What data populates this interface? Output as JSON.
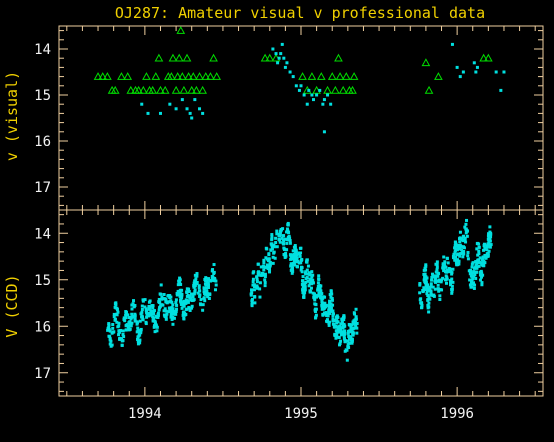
{
  "chart_data": [
    {
      "type": "scatter",
      "title": "OJ287: Amateur visual v professional data",
      "ylabel": "v (visual)",
      "xlim": [
        1993.45,
        1996.55
      ],
      "ylim": [
        17.5,
        13.5
      ],
      "yticks": [
        14,
        15,
        16,
        17
      ],
      "series": [
        {
          "marker": "triangle",
          "color": "#00dd00",
          "points": [
            [
              1993.7,
              14.6
            ],
            [
              1993.73,
              14.6
            ],
            [
              1993.76,
              14.6
            ],
            [
              1993.79,
              14.9
            ],
            [
              1993.81,
              14.9
            ],
            [
              1993.85,
              14.6
            ],
            [
              1993.89,
              14.6
            ],
            [
              1993.91,
              14.9
            ],
            [
              1993.94,
              14.9
            ],
            [
              1993.96,
              14.9
            ],
            [
              1993.99,
              14.9
            ],
            [
              1994.01,
              14.6
            ],
            [
              1994.03,
              14.9
            ],
            [
              1994.05,
              14.9
            ],
            [
              1994.07,
              14.6
            ],
            [
              1994.09,
              14.2
            ],
            [
              1994.1,
              14.9
            ],
            [
              1994.13,
              14.9
            ],
            [
              1994.15,
              14.6
            ],
            [
              1994.17,
              14.6
            ],
            [
              1994.18,
              14.2
            ],
            [
              1994.2,
              14.9
            ],
            [
              1994.21,
              14.6
            ],
            [
              1994.22,
              14.2
            ],
            [
              1994.23,
              13.6
            ],
            [
              1994.24,
              14.6
            ],
            [
              1994.25,
              14.9
            ],
            [
              1994.27,
              14.2
            ],
            [
              1994.28,
              14.6
            ],
            [
              1994.3,
              14.9
            ],
            [
              1994.31,
              14.6
            ],
            [
              1994.33,
              14.9
            ],
            [
              1994.35,
              14.6
            ],
            [
              1994.37,
              14.9
            ],
            [
              1994.39,
              14.6
            ],
            [
              1994.42,
              14.6
            ],
            [
              1994.44,
              14.2
            ],
            [
              1994.46,
              14.6
            ],
            [
              1994.77,
              14.2
            ],
            [
              1994.8,
              14.2
            ],
            [
              1994.84,
              14.2
            ],
            [
              1995.01,
              14.6
            ],
            [
              1995.04,
              14.9
            ],
            [
              1995.07,
              14.6
            ],
            [
              1995.1,
              14.9
            ],
            [
              1995.13,
              14.6
            ],
            [
              1995.17,
              14.9
            ],
            [
              1995.2,
              14.6
            ],
            [
              1995.22,
              14.9
            ],
            [
              1995.24,
              14.2
            ],
            [
              1995.25,
              14.6
            ],
            [
              1995.27,
              14.9
            ],
            [
              1995.29,
              14.6
            ],
            [
              1995.31,
              14.9
            ],
            [
              1995.33,
              14.9
            ],
            [
              1995.34,
              14.6
            ],
            [
              1995.8,
              14.3
            ],
            [
              1995.82,
              14.9
            ],
            [
              1995.88,
              14.6
            ],
            [
              1996.17,
              14.2
            ],
            [
              1996.2,
              14.2
            ]
          ]
        },
        {
          "marker": "square",
          "color": "#00e0e0",
          "points": [
            [
              1993.98,
              15.2
            ],
            [
              1994.02,
              15.4
            ],
            [
              1994.1,
              15.4
            ],
            [
              1994.16,
              15.2
            ],
            [
              1994.2,
              15.3
            ],
            [
              1994.24,
              15.1
            ],
            [
              1994.27,
              15.3
            ],
            [
              1994.29,
              15.4
            ],
            [
              1994.3,
              15.5
            ],
            [
              1994.32,
              15.1
            ],
            [
              1994.35,
              15.3
            ],
            [
              1994.37,
              15.4
            ],
            [
              1994.82,
              14.0
            ],
            [
              1994.84,
              14.1
            ],
            [
              1994.85,
              14.3
            ],
            [
              1994.86,
              14.2
            ],
            [
              1994.87,
              14.1
            ],
            [
              1994.88,
              13.9
            ],
            [
              1994.89,
              14.2
            ],
            [
              1994.9,
              14.4
            ],
            [
              1994.91,
              14.3
            ],
            [
              1994.93,
              14.5
            ],
            [
              1994.95,
              14.6
            ],
            [
              1994.97,
              14.8
            ],
            [
              1994.99,
              14.9
            ],
            [
              1995.0,
              14.8
            ],
            [
              1995.02,
              15.0
            ],
            [
              1995.04,
              15.2
            ],
            [
              1995.05,
              14.9
            ],
            [
              1995.07,
              15.0
            ],
            [
              1995.08,
              15.1
            ],
            [
              1995.1,
              15.0
            ],
            [
              1995.12,
              14.9
            ],
            [
              1995.14,
              15.2
            ],
            [
              1995.15,
              15.1
            ],
            [
              1995.17,
              15.0
            ],
            [
              1995.19,
              15.2
            ],
            [
              1995.15,
              15.8
            ],
            [
              1995.97,
              13.9
            ],
            [
              1996.0,
              14.4
            ],
            [
              1996.02,
              14.6
            ],
            [
              1996.04,
              14.5
            ],
            [
              1996.11,
              14.3
            ],
            [
              1996.12,
              14.5
            ],
            [
              1996.13,
              14.4
            ],
            [
              1996.25,
              14.5
            ],
            [
              1996.28,
              14.9
            ],
            [
              1996.3,
              14.5
            ]
          ]
        }
      ]
    },
    {
      "type": "scatter",
      "ylabel": "V (CCD)",
      "xlim": [
        1993.45,
        1996.55
      ],
      "ylim": [
        17.5,
        13.5
      ],
      "yticks": [
        14,
        15,
        16,
        17
      ],
      "xticks": [
        1994,
        1995,
        1996
      ],
      "series": [
        {
          "marker": "square",
          "color": "#00e0e0",
          "segments": [
            {
              "x": [
                1993.76,
                1994.46
              ],
              "trend": [
                [
                  0,
                  16.1
                ],
                [
                  0.25,
                  15.9
                ],
                [
                  0.5,
                  15.6
                ],
                [
                  0.75,
                  15.4
                ],
                [
                  1,
                  15.1
                ]
              ],
              "spread": 0.45,
              "n": 420
            },
            {
              "x": [
                1994.68,
                1994.88
              ],
              "trend": [
                [
                  0,
                  15.3
                ],
                [
                  0.4,
                  14.8
                ],
                [
                  0.75,
                  14.3
                ],
                [
                  1,
                  14.0
                ]
              ],
              "spread": 0.3,
              "n": 120
            },
            {
              "x": [
                1994.88,
                1995.36
              ],
              "trend": [
                [
                  0,
                  14.1
                ],
                [
                  0.2,
                  14.6
                ],
                [
                  0.45,
                  15.3
                ],
                [
                  0.7,
                  15.9
                ],
                [
                  0.85,
                  16.3
                ],
                [
                  1,
                  16.0
                ]
              ],
              "spread": 0.45,
              "n": 400
            },
            {
              "x": [
                1995.76,
                1996.22
              ],
              "trend": [
                [
                  0,
                  15.3
                ],
                [
                  0.3,
                  15.0
                ],
                [
                  0.5,
                  14.6
                ],
                [
                  0.62,
                  14.0
                ],
                [
                  0.72,
                  14.9
                ],
                [
                  1,
                  14.3
                ]
              ],
              "spread": 0.5,
              "n": 340
            }
          ]
        }
      ]
    }
  ]
}
